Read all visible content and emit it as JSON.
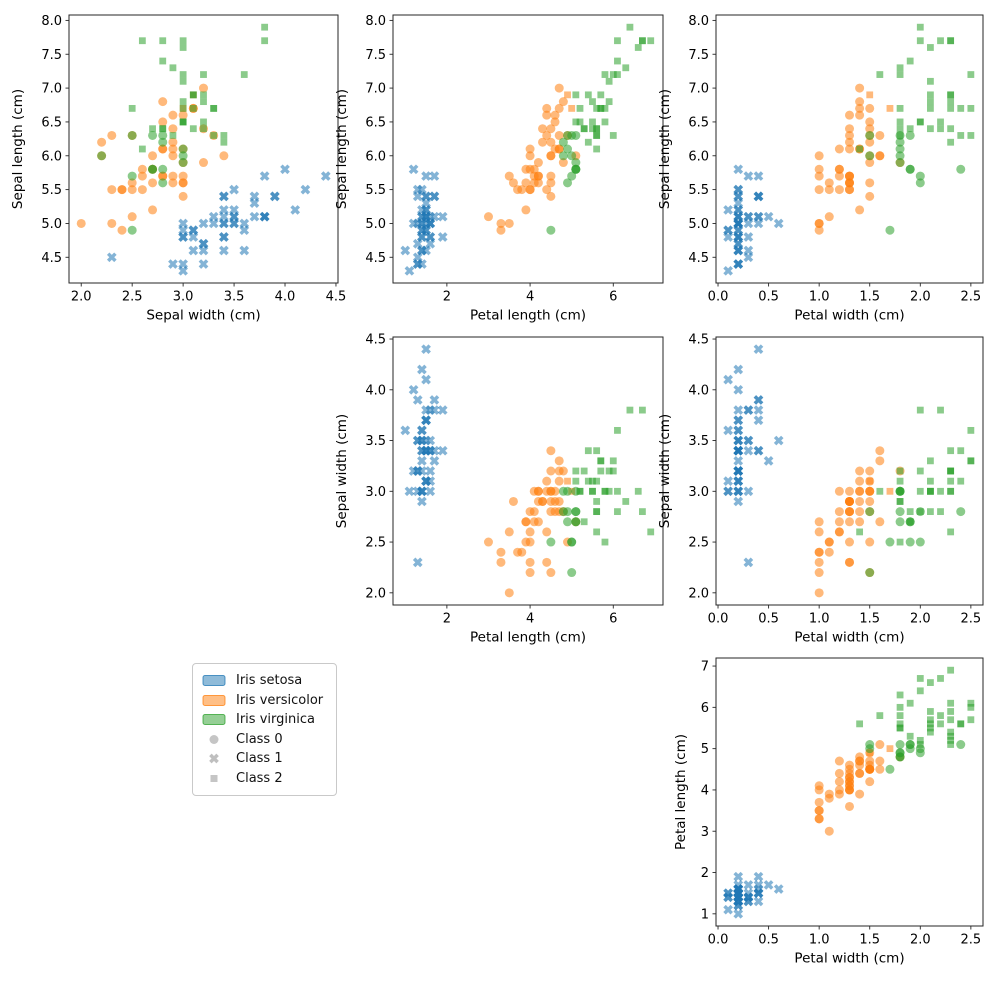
{
  "figure": {
    "description": "Iris dataset pairwise scatter plots; color = true species, marker shape = predicted class",
    "background": "#ffffff"
  },
  "colors": {
    "species": [
      "#1f77b4",
      "#ff7f0e",
      "#2ca02c"
    ],
    "legend_gray": "#7f7f7f",
    "spine": "#262626",
    "text": "#000000",
    "marker_alpha": 0.55
  },
  "legend": {
    "entries": [
      {
        "label": "Iris setosa",
        "swatch": "patch",
        "color": "#1f77b4"
      },
      {
        "label": "Iris versicolor",
        "swatch": "patch",
        "color": "#ff7f0e"
      },
      {
        "label": "Iris virginica",
        "swatch": "patch",
        "color": "#2ca02c"
      },
      {
        "label": "Class 0",
        "swatch": "circle",
        "color": "#7f7f7f"
      },
      {
        "label": "Class 1",
        "swatch": "x",
        "color": "#7f7f7f"
      },
      {
        "label": "Class 2",
        "swatch": "square",
        "color": "#7f7f7f"
      }
    ]
  },
  "chart_data": {
    "type": "scatter",
    "title": "",
    "grid": false,
    "columns": [
      "sepal_length",
      "sepal_width",
      "petal_length",
      "petal_width",
      "species",
      "class"
    ],
    "species_names": [
      "Iris setosa",
      "Iris versicolor",
      "Iris virginica"
    ],
    "class_names": [
      "Class 0",
      "Class 1",
      "Class 2"
    ],
    "class_markers": [
      "circle",
      "x",
      "square"
    ],
    "subplots": [
      {
        "key": "ax00",
        "x": "sepal_width",
        "y": "sepal_length",
        "xlabel": "Sepal width (cm)",
        "ylabel": "Sepal length (cm)",
        "xlim": [
          1.88,
          4.52
        ],
        "ylim": [
          4.12,
          8.08
        ],
        "xticks": [
          2.0,
          2.5,
          3.0,
          3.5,
          4.0,
          4.5
        ],
        "xtick_labels": [
          "2.0",
          "2.5",
          "3.0",
          "3.5",
          "4.0",
          "4.5"
        ],
        "yticks": [
          4.5,
          5.0,
          5.5,
          6.0,
          6.5,
          7.0,
          7.5,
          8.0
        ],
        "ytick_labels": [
          "4.5",
          "5.0",
          "5.5",
          "6.0",
          "6.5",
          "7.0",
          "7.5",
          "8.0"
        ]
      },
      {
        "key": "ax01",
        "x": "petal_length",
        "y": "sepal_length",
        "xlabel": "Petal length (cm)",
        "ylabel": "Sepal length (cm)",
        "xlim": [
          0.705,
          7.195
        ],
        "ylim": [
          4.12,
          8.08
        ],
        "xticks": [
          2,
          4,
          6
        ],
        "xtick_labels": [
          "2",
          "4",
          "6"
        ],
        "yticks": [
          4.5,
          5.0,
          5.5,
          6.0,
          6.5,
          7.0,
          7.5,
          8.0
        ],
        "ytick_labels": [
          "4.5",
          "5.0",
          "5.5",
          "6.0",
          "6.5",
          "7.0",
          "7.5",
          "8.0"
        ]
      },
      {
        "key": "ax02",
        "x": "petal_width",
        "y": "sepal_length",
        "xlabel": "Petal width (cm)",
        "ylabel": "Sepal length (cm)",
        "xlim": [
          -0.02,
          2.62
        ],
        "ylim": [
          4.12,
          8.08
        ],
        "xticks": [
          0.0,
          0.5,
          1.0,
          1.5,
          2.0,
          2.5
        ],
        "xtick_labels": [
          "0.0",
          "0.5",
          "1.0",
          "1.5",
          "2.0",
          "2.5"
        ],
        "yticks": [
          4.5,
          5.0,
          5.5,
          6.0,
          6.5,
          7.0,
          7.5,
          8.0
        ],
        "ytick_labels": [
          "4.5",
          "5.0",
          "5.5",
          "6.0",
          "6.5",
          "7.0",
          "7.5",
          "8.0"
        ]
      },
      {
        "key": "ax11",
        "x": "petal_length",
        "y": "sepal_width",
        "xlabel": "Petal length (cm)",
        "ylabel": "Sepal width (cm)",
        "xlim": [
          0.705,
          7.195
        ],
        "ylim": [
          1.88,
          4.52
        ],
        "xticks": [
          2,
          4,
          6
        ],
        "xtick_labels": [
          "2",
          "4",
          "6"
        ],
        "yticks": [
          2.0,
          2.5,
          3.0,
          3.5,
          4.0,
          4.5
        ],
        "ytick_labels": [
          "2.0",
          "2.5",
          "3.0",
          "3.5",
          "4.0",
          "4.5"
        ]
      },
      {
        "key": "ax12",
        "x": "petal_width",
        "y": "sepal_width",
        "xlabel": "Petal width (cm)",
        "ylabel": "Sepal width (cm)",
        "xlim": [
          -0.02,
          2.62
        ],
        "ylim": [
          1.88,
          4.52
        ],
        "xticks": [
          0.0,
          0.5,
          1.0,
          1.5,
          2.0,
          2.5
        ],
        "xtick_labels": [
          "0.0",
          "0.5",
          "1.0",
          "1.5",
          "2.0",
          "2.5"
        ],
        "yticks": [
          2.0,
          2.5,
          3.0,
          3.5,
          4.0,
          4.5
        ],
        "ytick_labels": [
          "2.0",
          "2.5",
          "3.0",
          "3.5",
          "4.0",
          "4.5"
        ]
      },
      {
        "key": "ax22",
        "x": "petal_width",
        "y": "petal_length",
        "xlabel": "Petal width (cm)",
        "ylabel": "Petal length (cm)",
        "xlim": [
          -0.02,
          2.62
        ],
        "ylim": [
          0.705,
          7.195
        ],
        "xticks": [
          0.0,
          0.5,
          1.0,
          1.5,
          2.0,
          2.5
        ],
        "xtick_labels": [
          "0.0",
          "0.5",
          "1.0",
          "1.5",
          "2.0",
          "2.5"
        ],
        "yticks": [
          1,
          2,
          3,
          4,
          5,
          6,
          7
        ],
        "ytick_labels": [
          "1",
          "2",
          "3",
          "4",
          "5",
          "6",
          "7"
        ]
      }
    ],
    "points": [
      [
        5.1,
        3.5,
        1.4,
        0.2,
        0,
        1
      ],
      [
        4.9,
        3.0,
        1.4,
        0.2,
        0,
        1
      ],
      [
        4.7,
        3.2,
        1.3,
        0.2,
        0,
        1
      ],
      [
        4.6,
        3.1,
        1.5,
        0.2,
        0,
        1
      ],
      [
        5.0,
        3.6,
        1.4,
        0.2,
        0,
        1
      ],
      [
        5.4,
        3.9,
        1.7,
        0.4,
        0,
        1
      ],
      [
        4.6,
        3.4,
        1.4,
        0.3,
        0,
        1
      ],
      [
        5.0,
        3.4,
        1.5,
        0.2,
        0,
        1
      ],
      [
        4.4,
        2.9,
        1.4,
        0.2,
        0,
        1
      ],
      [
        4.9,
        3.1,
        1.5,
        0.1,
        0,
        1
      ],
      [
        5.4,
        3.7,
        1.5,
        0.2,
        0,
        1
      ],
      [
        4.8,
        3.4,
        1.6,
        0.2,
        0,
        1
      ],
      [
        4.8,
        3.0,
        1.4,
        0.1,
        0,
        1
      ],
      [
        4.3,
        3.0,
        1.1,
        0.1,
        0,
        1
      ],
      [
        5.8,
        4.0,
        1.2,
        0.2,
        0,
        1
      ],
      [
        5.7,
        4.4,
        1.5,
        0.4,
        0,
        1
      ],
      [
        5.4,
        3.9,
        1.3,
        0.4,
        0,
        1
      ],
      [
        5.1,
        3.5,
        1.4,
        0.3,
        0,
        1
      ],
      [
        5.7,
        3.8,
        1.7,
        0.3,
        0,
        1
      ],
      [
        5.1,
        3.8,
        1.5,
        0.3,
        0,
        1
      ],
      [
        5.4,
        3.4,
        1.7,
        0.2,
        0,
        1
      ],
      [
        5.1,
        3.7,
        1.5,
        0.4,
        0,
        1
      ],
      [
        4.6,
        3.6,
        1.0,
        0.2,
        0,
        1
      ],
      [
        5.1,
        3.3,
        1.7,
        0.5,
        0,
        1
      ],
      [
        4.8,
        3.4,
        1.9,
        0.2,
        0,
        1
      ],
      [
        5.0,
        3.0,
        1.6,
        0.2,
        0,
        1
      ],
      [
        5.0,
        3.4,
        1.6,
        0.4,
        0,
        1
      ],
      [
        5.2,
        3.5,
        1.5,
        0.2,
        0,
        1
      ],
      [
        5.2,
        3.4,
        1.4,
        0.2,
        0,
        1
      ],
      [
        4.7,
        3.2,
        1.6,
        0.2,
        0,
        1
      ],
      [
        4.8,
        3.1,
        1.6,
        0.2,
        0,
        1
      ],
      [
        5.4,
        3.4,
        1.5,
        0.4,
        0,
        1
      ],
      [
        5.2,
        4.1,
        1.5,
        0.1,
        0,
        1
      ],
      [
        5.5,
        4.2,
        1.4,
        0.2,
        0,
        1
      ],
      [
        4.9,
        3.1,
        1.5,
        0.2,
        0,
        1
      ],
      [
        5.0,
        3.2,
        1.2,
        0.2,
        0,
        1
      ],
      [
        5.5,
        3.5,
        1.3,
        0.2,
        0,
        1
      ],
      [
        4.9,
        3.6,
        1.4,
        0.1,
        0,
        1
      ],
      [
        4.4,
        3.0,
        1.3,
        0.2,
        0,
        1
      ],
      [
        5.1,
        3.4,
        1.5,
        0.2,
        0,
        1
      ],
      [
        5.0,
        3.5,
        1.3,
        0.3,
        0,
        1
      ],
      [
        4.5,
        2.3,
        1.3,
        0.3,
        0,
        1
      ],
      [
        4.4,
        3.2,
        1.3,
        0.2,
        0,
        1
      ],
      [
        5.0,
        3.5,
        1.6,
        0.6,
        0,
        1
      ],
      [
        5.1,
        3.8,
        1.9,
        0.4,
        0,
        1
      ],
      [
        4.8,
        3.0,
        1.4,
        0.3,
        0,
        1
      ],
      [
        5.1,
        3.8,
        1.6,
        0.2,
        0,
        1
      ],
      [
        4.6,
        3.2,
        1.4,
        0.2,
        0,
        1
      ],
      [
        5.3,
        3.7,
        1.5,
        0.2,
        0,
        1
      ],
      [
        5.0,
        3.3,
        1.4,
        0.2,
        0,
        1
      ],
      [
        7.0,
        3.2,
        4.7,
        1.4,
        1,
        0
      ],
      [
        6.4,
        3.2,
        4.5,
        1.5,
        1,
        0
      ],
      [
        6.9,
        3.1,
        4.9,
        1.5,
        1,
        2
      ],
      [
        5.5,
        2.3,
        4.0,
        1.3,
        1,
        0
      ],
      [
        6.5,
        2.8,
        4.6,
        1.5,
        1,
        0
      ],
      [
        5.7,
        2.8,
        4.5,
        1.3,
        1,
        0
      ],
      [
        6.3,
        3.3,
        4.7,
        1.6,
        1,
        0
      ],
      [
        4.9,
        2.4,
        3.3,
        1.0,
        1,
        0
      ],
      [
        6.6,
        2.9,
        4.6,
        1.3,
        1,
        0
      ],
      [
        5.2,
        2.7,
        3.9,
        1.4,
        1,
        0
      ],
      [
        5.0,
        2.0,
        3.5,
        1.0,
        1,
        0
      ],
      [
        5.9,
        3.0,
        4.2,
        1.5,
        1,
        0
      ],
      [
        6.0,
        2.2,
        4.0,
        1.0,
        1,
        0
      ],
      [
        6.1,
        2.9,
        4.7,
        1.4,
        1,
        0
      ],
      [
        5.6,
        2.9,
        3.6,
        1.3,
        1,
        0
      ],
      [
        6.7,
        3.1,
        4.4,
        1.4,
        1,
        0
      ],
      [
        5.6,
        3.0,
        4.5,
        1.5,
        1,
        0
      ],
      [
        5.8,
        2.7,
        4.1,
        1.0,
        1,
        0
      ],
      [
        6.2,
        2.2,
        4.5,
        1.5,
        1,
        0
      ],
      [
        5.6,
        2.5,
        3.9,
        1.1,
        1,
        0
      ],
      [
        5.9,
        3.2,
        4.8,
        1.8,
        1,
        0
      ],
      [
        6.1,
        2.8,
        4.0,
        1.3,
        1,
        0
      ],
      [
        6.3,
        2.5,
        4.9,
        1.5,
        1,
        0
      ],
      [
        6.1,
        2.8,
        4.7,
        1.2,
        1,
        0
      ],
      [
        6.4,
        2.9,
        4.3,
        1.3,
        1,
        0
      ],
      [
        6.6,
        3.0,
        4.4,
        1.4,
        1,
        0
      ],
      [
        6.8,
        2.8,
        4.8,
        1.4,
        1,
        0
      ],
      [
        6.7,
        3.0,
        5.0,
        1.7,
        1,
        2
      ],
      [
        6.0,
        2.9,
        4.5,
        1.5,
        1,
        0
      ],
      [
        5.7,
        2.6,
        3.5,
        1.0,
        1,
        0
      ],
      [
        5.5,
        2.4,
        3.8,
        1.1,
        1,
        0
      ],
      [
        5.5,
        2.4,
        3.7,
        1.0,
        1,
        0
      ],
      [
        5.8,
        2.7,
        3.9,
        1.2,
        1,
        0
      ],
      [
        6.0,
        2.7,
        5.1,
        1.6,
        1,
        0
      ],
      [
        5.4,
        3.0,
        4.5,
        1.5,
        1,
        0
      ],
      [
        6.0,
        3.4,
        4.5,
        1.6,
        1,
        0
      ],
      [
        6.7,
        3.1,
        4.7,
        1.5,
        1,
        0
      ],
      [
        6.3,
        2.3,
        4.4,
        1.3,
        1,
        0
      ],
      [
        5.6,
        3.0,
        4.1,
        1.3,
        1,
        0
      ],
      [
        5.5,
        2.5,
        4.0,
        1.3,
        1,
        0
      ],
      [
        5.5,
        2.6,
        4.4,
        1.2,
        1,
        0
      ],
      [
        6.1,
        3.0,
        4.6,
        1.4,
        1,
        0
      ],
      [
        5.8,
        2.6,
        4.0,
        1.2,
        1,
        0
      ],
      [
        5.0,
        2.3,
        3.3,
        1.0,
        1,
        0
      ],
      [
        5.6,
        2.7,
        4.2,
        1.3,
        1,
        0
      ],
      [
        5.7,
        3.0,
        4.2,
        1.2,
        1,
        0
      ],
      [
        5.7,
        2.9,
        4.2,
        1.3,
        1,
        0
      ],
      [
        6.2,
        2.9,
        4.3,
        1.3,
        1,
        0
      ],
      [
        5.1,
        2.5,
        3.0,
        1.1,
        1,
        0
      ],
      [
        5.7,
        2.8,
        4.1,
        1.3,
        1,
        0
      ],
      [
        6.3,
        3.3,
        6.0,
        2.5,
        2,
        2
      ],
      [
        5.8,
        2.7,
        5.1,
        1.9,
        2,
        0
      ],
      [
        7.1,
        3.0,
        5.9,
        2.1,
        2,
        2
      ],
      [
        6.3,
        2.9,
        5.6,
        1.8,
        2,
        2
      ],
      [
        6.5,
        3.0,
        5.8,
        2.2,
        2,
        2
      ],
      [
        7.6,
        3.0,
        6.6,
        2.1,
        2,
        2
      ],
      [
        4.9,
        2.5,
        4.5,
        1.7,
        2,
        0
      ],
      [
        7.3,
        2.9,
        6.3,
        1.8,
        2,
        2
      ],
      [
        6.7,
        2.5,
        5.8,
        1.8,
        2,
        2
      ],
      [
        7.2,
        3.6,
        6.1,
        2.5,
        2,
        2
      ],
      [
        6.5,
        3.2,
        5.1,
        2.0,
        2,
        2
      ],
      [
        6.4,
        2.7,
        5.3,
        1.9,
        2,
        2
      ],
      [
        6.8,
        3.0,
        5.5,
        2.1,
        2,
        2
      ],
      [
        5.7,
        2.5,
        5.0,
        2.0,
        2,
        0
      ],
      [
        5.8,
        2.8,
        5.1,
        2.4,
        2,
        0
      ],
      [
        6.4,
        3.2,
        5.3,
        2.3,
        2,
        2
      ],
      [
        6.5,
        3.0,
        5.5,
        1.8,
        2,
        2
      ],
      [
        7.7,
        3.8,
        6.7,
        2.2,
        2,
        2
      ],
      [
        7.7,
        2.6,
        6.9,
        2.3,
        2,
        2
      ],
      [
        6.0,
        2.2,
        5.0,
        1.5,
        2,
        0
      ],
      [
        6.9,
        3.2,
        5.7,
        2.3,
        2,
        2
      ],
      [
        5.6,
        2.8,
        4.9,
        2.0,
        2,
        0
      ],
      [
        7.7,
        2.8,
        6.7,
        2.0,
        2,
        2
      ],
      [
        6.3,
        2.7,
        4.9,
        1.8,
        2,
        0
      ],
      [
        6.7,
        3.3,
        5.7,
        2.1,
        2,
        2
      ],
      [
        7.2,
        3.2,
        6.0,
        1.8,
        2,
        2
      ],
      [
        6.2,
        2.8,
        4.8,
        1.8,
        2,
        0
      ],
      [
        6.1,
        3.0,
        4.9,
        1.8,
        2,
        0
      ],
      [
        6.4,
        2.8,
        5.6,
        2.1,
        2,
        2
      ],
      [
        7.2,
        3.0,
        5.8,
        1.6,
        2,
        2
      ],
      [
        7.4,
        2.8,
        6.1,
        1.9,
        2,
        2
      ],
      [
        7.9,
        3.8,
        6.4,
        2.0,
        2,
        2
      ],
      [
        6.4,
        2.8,
        5.6,
        2.2,
        2,
        2
      ],
      [
        6.3,
        2.8,
        5.1,
        1.5,
        2,
        0
      ],
      [
        6.1,
        2.6,
        5.6,
        1.4,
        2,
        2
      ],
      [
        7.7,
        3.0,
        6.1,
        2.3,
        2,
        2
      ],
      [
        6.3,
        3.4,
        5.6,
        2.4,
        2,
        2
      ],
      [
        6.4,
        3.1,
        5.5,
        1.8,
        2,
        2
      ],
      [
        6.0,
        3.0,
        4.8,
        1.8,
        2,
        0
      ],
      [
        6.9,
        3.1,
        5.4,
        2.1,
        2,
        2
      ],
      [
        6.7,
        3.1,
        5.6,
        2.4,
        2,
        2
      ],
      [
        6.9,
        3.1,
        5.1,
        2.3,
        2,
        2
      ],
      [
        5.8,
        2.7,
        5.1,
        1.9,
        2,
        0
      ],
      [
        6.8,
        3.2,
        5.9,
        2.3,
        2,
        2
      ],
      [
        6.7,
        3.3,
        5.7,
        2.5,
        2,
        2
      ],
      [
        6.7,
        3.0,
        5.2,
        2.3,
        2,
        2
      ],
      [
        6.3,
        2.5,
        5.0,
        1.9,
        2,
        0
      ],
      [
        6.5,
        3.0,
        5.2,
        2.0,
        2,
        2
      ],
      [
        6.2,
        3.4,
        5.4,
        2.3,
        2,
        2
      ],
      [
        5.9,
        3.0,
        5.1,
        1.8,
        2,
        0
      ]
    ]
  }
}
